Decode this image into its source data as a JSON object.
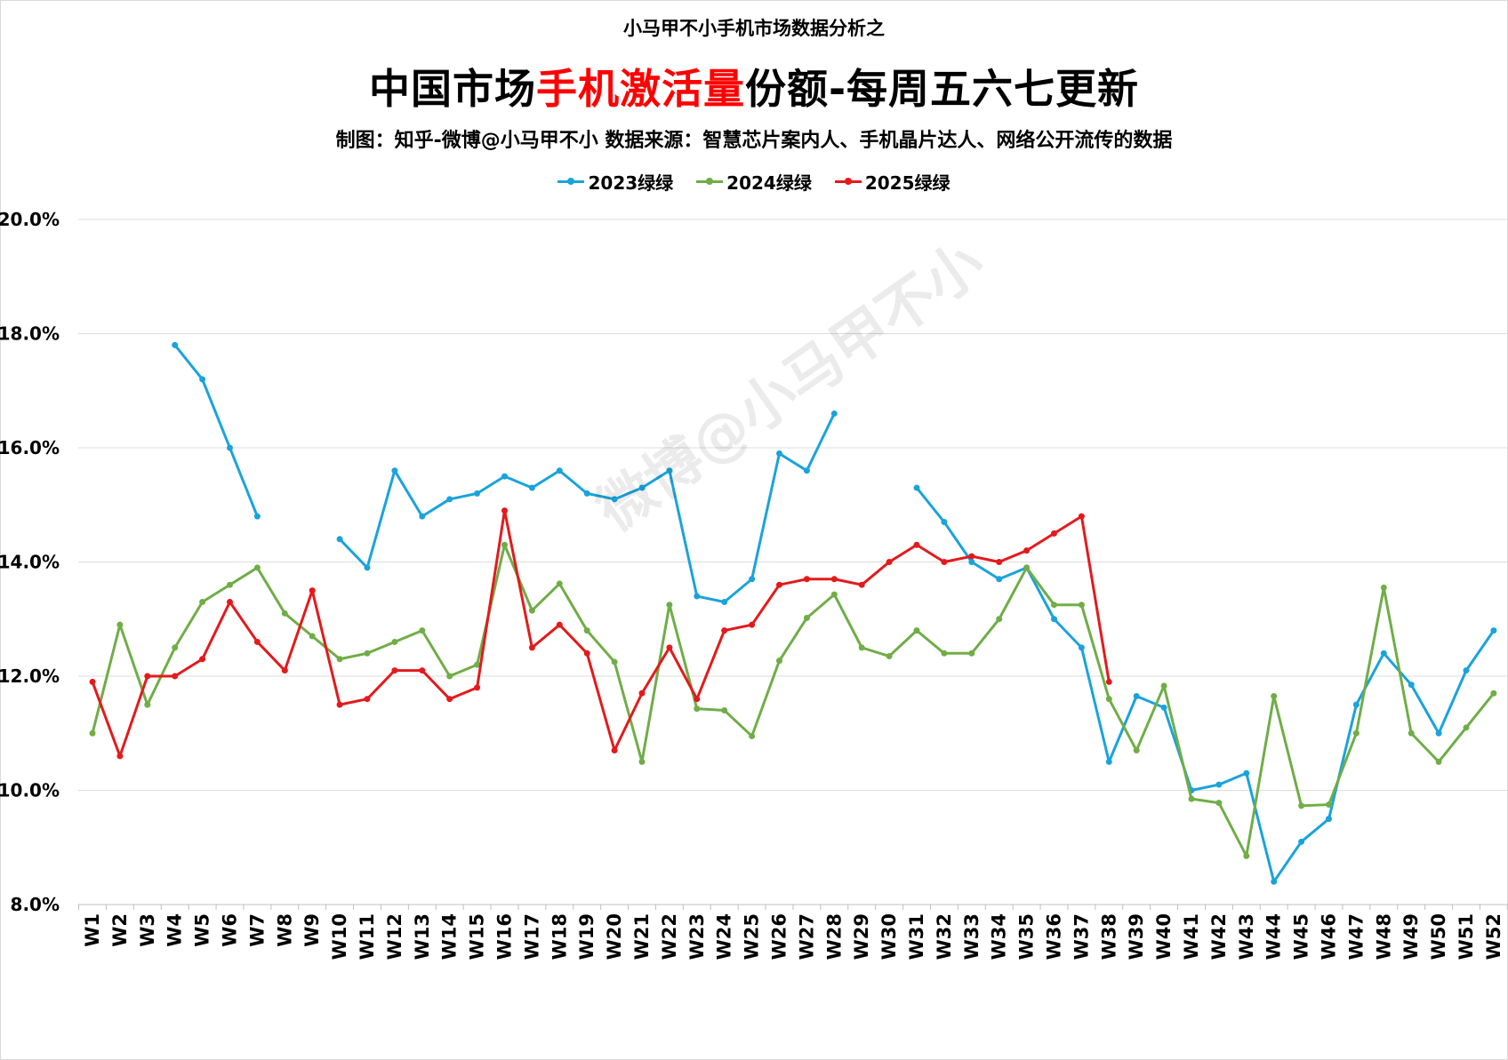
{
  "header": {
    "top_title": "小马甲不小手机市场数据分析之",
    "title_part1": "中国市场",
    "title_highlight": "手机激活量",
    "title_part2": "份额-每周五六七更新",
    "subtitle": "制图：知乎-微博@小马甲不小   数据来源：智慧芯片案内人、手机晶片达人、网络公开流传的数据"
  },
  "watermark": "微博@小马甲不小",
  "chart_data": {
    "type": "line",
    "title": "中国市场手机激活量份额-每周五六七更新",
    "xlabel": "",
    "ylabel": "",
    "ylim": [
      8.0,
      20.0
    ],
    "yticks": [
      "8.0%",
      "10.0%",
      "12.0%",
      "14.0%",
      "16.0%",
      "18.0%",
      "20.0%"
    ],
    "grid": true,
    "legend_position": "top-center",
    "categories": [
      "W1",
      "W2",
      "W3",
      "W4",
      "W5",
      "W6",
      "W7",
      "W8",
      "W9",
      "W10",
      "W11",
      "W12",
      "W13",
      "W14",
      "W15",
      "W16",
      "W17",
      "W18",
      "W19",
      "W20",
      "W21",
      "W22",
      "W23",
      "W24",
      "W25",
      "W26",
      "W27",
      "W28",
      "W29",
      "W30",
      "W31",
      "W32",
      "W33",
      "W34",
      "W35",
      "W36",
      "W37",
      "W38",
      "W39",
      "W40",
      "W41",
      "W42",
      "W43",
      "W44",
      "W45",
      "W46",
      "W47",
      "W48",
      "W49",
      "W50",
      "W51",
      "W52"
    ],
    "series": [
      {
        "name": "2023绿绿",
        "color": "#1aa3db",
        "values": [
          null,
          null,
          null,
          17.8,
          17.2,
          16.0,
          14.8,
          null,
          null,
          14.4,
          13.9,
          15.6,
          14.8,
          15.1,
          15.2,
          15.5,
          15.3,
          15.6,
          15.2,
          15.1,
          15.3,
          15.6,
          13.4,
          13.3,
          13.7,
          15.9,
          15.6,
          16.6,
          null,
          null,
          15.3,
          14.7,
          14.0,
          13.7,
          13.9,
          13.0,
          12.5,
          10.5,
          11.65,
          11.45,
          10.0,
          10.1,
          10.3,
          8.4,
          9.1,
          9.5,
          11.5,
          12.4,
          11.85,
          11.0,
          12.1,
          12.8
        ]
      },
      {
        "name": "2024绿绿",
        "color": "#70ad47",
        "values": [
          11.0,
          12.9,
          11.5,
          12.5,
          13.3,
          13.6,
          13.9,
          13.1,
          12.7,
          12.3,
          12.4,
          12.6,
          12.8,
          12.0,
          12.2,
          14.3,
          13.15,
          13.62,
          12.8,
          12.25,
          10.5,
          13.25,
          11.43,
          11.4,
          10.95,
          12.27,
          13.02,
          13.43,
          12.5,
          12.35,
          12.8,
          12.4,
          12.4,
          13.0,
          13.9,
          13.25,
          13.25,
          11.6,
          10.7,
          11.83,
          9.85,
          9.78,
          8.85,
          11.65,
          9.73,
          9.75,
          11.0,
          13.55,
          11.0,
          10.5,
          11.1,
          11.7
        ]
      },
      {
        "name": "2025绿绿",
        "color": "#e31a1c",
        "values": [
          11.9,
          10.6,
          12.0,
          12.0,
          12.3,
          13.3,
          12.6,
          12.1,
          13.5,
          11.5,
          11.6,
          12.1,
          12.1,
          11.6,
          11.8,
          14.9,
          12.5,
          12.9,
          12.4,
          10.7,
          11.7,
          12.5,
          11.6,
          12.8,
          12.9,
          13.6,
          13.7,
          13.7,
          13.6,
          14.0,
          14.3,
          14.0,
          14.1,
          14.0,
          14.2,
          14.5,
          14.8,
          11.9,
          null,
          null,
          null,
          null,
          null,
          null,
          null,
          null,
          null,
          null,
          null,
          null,
          null,
          null
        ]
      }
    ]
  }
}
